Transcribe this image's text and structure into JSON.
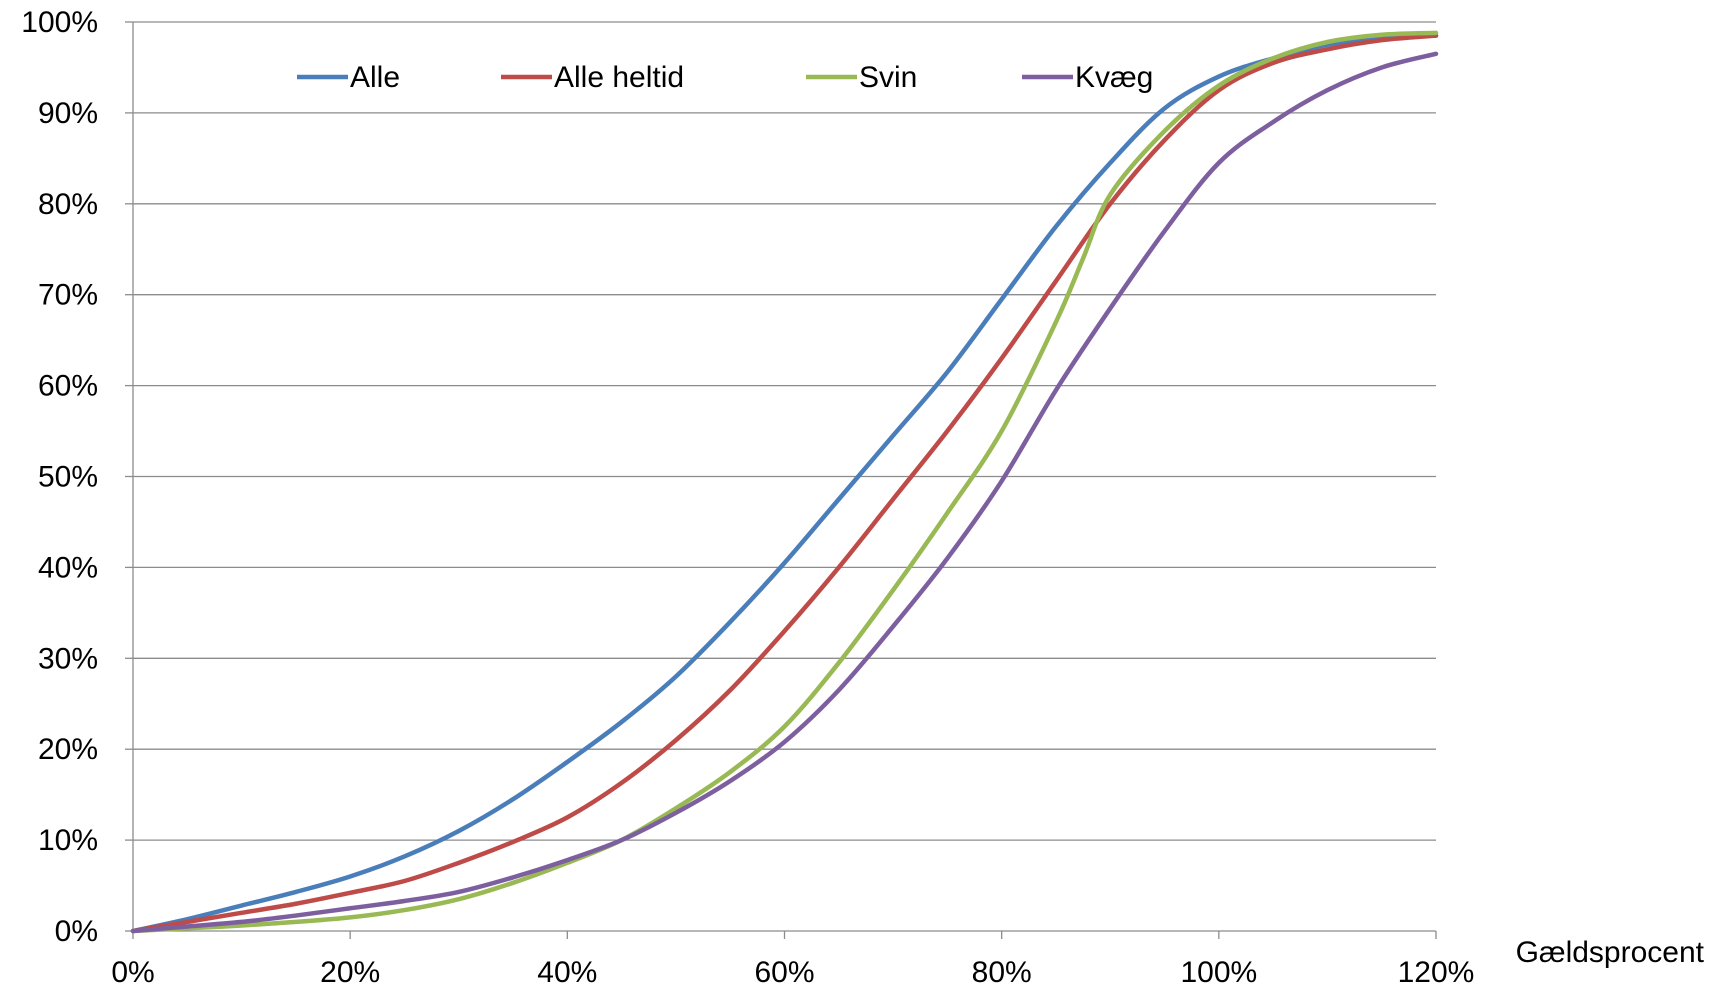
{
  "chart_data": {
    "type": "line",
    "title": "",
    "xlabel": "Gældsprocent",
    "ylabel": "",
    "xlim": [
      0,
      120
    ],
    "ylim": [
      0,
      100
    ],
    "x_ticks": [
      0,
      20,
      40,
      60,
      80,
      100,
      120
    ],
    "y_ticks": [
      0,
      10,
      20,
      30,
      40,
      50,
      60,
      70,
      80,
      90,
      100
    ],
    "x_tick_labels": [
      "0%",
      "20%",
      "40%",
      "60%",
      "80%",
      "100%",
      "120%"
    ],
    "y_tick_labels": [
      "0%",
      "10%",
      "20%",
      "30%",
      "40%",
      "50%",
      "60%",
      "70%",
      "80%",
      "90%",
      "100%"
    ],
    "grid": "horizontal",
    "legend_position": "top",
    "series": [
      {
        "name": "Alle",
        "color": "#4a7ebb",
        "x": [
          0,
          5,
          10,
          15,
          20,
          25,
          30,
          35,
          40,
          45,
          50,
          55,
          60,
          65,
          70,
          75,
          80,
          85,
          90,
          95,
          100,
          105,
          110,
          115,
          120
        ],
        "y": [
          0,
          1.3,
          2.8,
          4.3,
          6,
          8.2,
          11,
          14.5,
          18.6,
          23,
          28,
          34,
          40.5,
          47.5,
          54.5,
          61.5,
          69.5,
          77.5,
          84.5,
          90.5,
          94,
          96,
          97.5,
          98.3,
          98.5
        ]
      },
      {
        "name": "Alle heltid",
        "color": "#be4b48",
        "x": [
          0,
          5,
          10,
          15,
          20,
          25,
          30,
          35,
          40,
          45,
          50,
          55,
          60,
          65,
          70,
          75,
          80,
          85,
          90,
          95,
          100,
          105,
          110,
          115,
          120
        ],
        "y": [
          0,
          1,
          2,
          3,
          4.2,
          5.5,
          7.5,
          9.8,
          12.5,
          16.3,
          21,
          26.5,
          33,
          40,
          47.5,
          55,
          63,
          71.5,
          80,
          87,
          92.5,
          95.5,
          97,
          98,
          98.5
        ]
      },
      {
        "name": "Svin",
        "color": "#98b954",
        "x": [
          0,
          5,
          10,
          15,
          20,
          25,
          30,
          35,
          40,
          45,
          50,
          55,
          60,
          65,
          70,
          75,
          80,
          85,
          87.5,
          90,
          95,
          100,
          105,
          110,
          115,
          120
        ],
        "y": [
          0,
          0.3,
          0.6,
          1,
          1.5,
          2.3,
          3.5,
          5.3,
          7.5,
          10,
          13.5,
          17.5,
          22.5,
          29.5,
          37.5,
          46,
          55,
          67,
          74,
          81,
          88,
          93,
          96,
          97.8,
          98.6,
          98.8
        ]
      },
      {
        "name": "Kvæg",
        "color": "#7d5fa0",
        "x": [
          0,
          5,
          10,
          15,
          20,
          25,
          30,
          35,
          40,
          45,
          50,
          55,
          60,
          65,
          70,
          75,
          80,
          85,
          90,
          95,
          100,
          105,
          110,
          115,
          120
        ],
        "y": [
          0,
          0.5,
          1,
          1.7,
          2.5,
          3.3,
          4.3,
          5.9,
          7.8,
          10,
          13,
          16.5,
          20.8,
          26.5,
          33.5,
          41,
          49.5,
          59.5,
          68.5,
          77,
          84.5,
          89,
          92.5,
          95,
          96.5
        ]
      }
    ]
  }
}
